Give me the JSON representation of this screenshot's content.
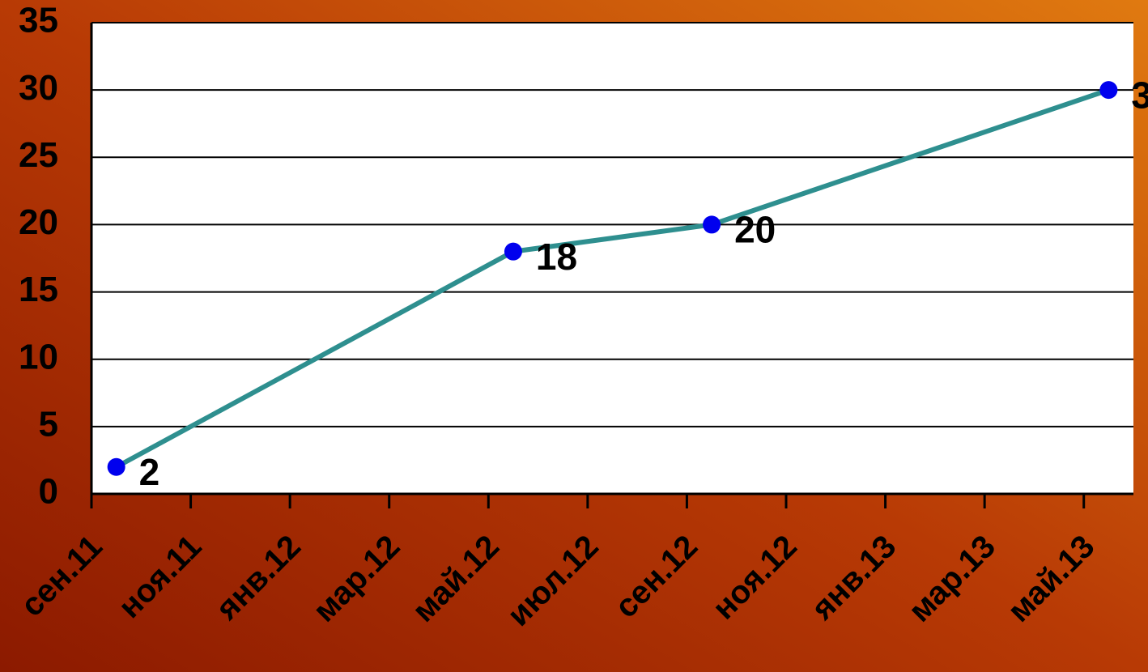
{
  "chart_data": {
    "type": "line",
    "x": [
      "2011-09",
      "2012-05",
      "2012-09",
      "2013-05"
    ],
    "series": [
      {
        "color": "#2e8f8f",
        "marker_color": "#0000ee",
        "values": [
          2,
          18,
          20,
          30
        ]
      }
    ],
    "xlim": [
      "2011-09",
      "2013-05"
    ],
    "xticks": [
      {
        "value": "2011-09",
        "label": "сен.11"
      },
      {
        "value": "2011-11",
        "label": "ноя.11"
      },
      {
        "value": "2012-01",
        "label": "янв.12"
      },
      {
        "value": "2012-03",
        "label": "мар.12"
      },
      {
        "value": "2012-05",
        "label": "май.12"
      },
      {
        "value": "2012-07",
        "label": "июл.12"
      },
      {
        "value": "2012-09",
        "label": "сен.12"
      },
      {
        "value": "2012-11",
        "label": "ноя.12"
      },
      {
        "value": "2013-01",
        "label": "янв.13"
      },
      {
        "value": "2013-03",
        "label": "мар.13"
      },
      {
        "value": "2013-05",
        "label": "май.13"
      }
    ],
    "ylim": [
      0,
      35
    ],
    "yticks": [
      0,
      5,
      10,
      15,
      20,
      25,
      30,
      35
    ],
    "grid": true
  }
}
